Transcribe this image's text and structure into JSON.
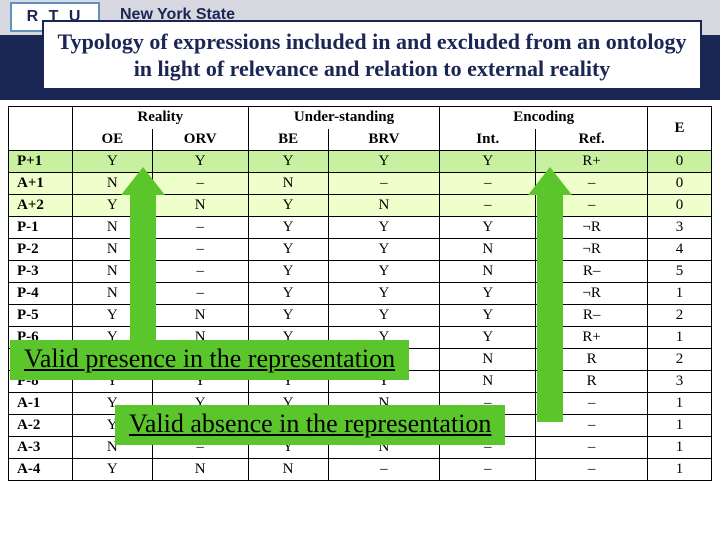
{
  "header": {
    "logo_text": "R T U",
    "nys": "New York State",
    "title": "Typology of expressions included in and excluded from an ontology in light of relevance and relation to external reality"
  },
  "table": {
    "groups": [
      "",
      "Reality",
      "Under-standing",
      "Encoding",
      "E"
    ],
    "subheaders": [
      "",
      "OE",
      "ORV",
      "BE",
      "BRV",
      "Int.",
      "Ref.",
      ""
    ],
    "rows": [
      {
        "label": "P+1",
        "cells": [
          "Y",
          "Y",
          "Y",
          "Y",
          "Y",
          "R+",
          "0"
        ],
        "cls": "sect-P1"
      },
      {
        "label": "A+1",
        "cells": [
          "N",
          "–",
          "N",
          "–",
          "–",
          "–",
          "0"
        ],
        "cls": "sect-A1"
      },
      {
        "label": "A+2",
        "cells": [
          "Y",
          "N",
          "Y",
          "N",
          "–",
          "–",
          "0"
        ],
        "cls": "sect-A1"
      },
      {
        "label": "P-1",
        "cells": [
          "N",
          "–",
          "Y",
          "Y",
          "Y",
          "¬R",
          "3"
        ],
        "cls": ""
      },
      {
        "label": "P-2",
        "cells": [
          "N",
          "–",
          "Y",
          "Y",
          "N",
          "¬R",
          "4"
        ],
        "cls": ""
      },
      {
        "label": "P-3",
        "cells": [
          "N",
          "–",
          "Y",
          "Y",
          "N",
          "R–",
          "5"
        ],
        "cls": ""
      },
      {
        "label": "P-4",
        "cells": [
          "N",
          "–",
          "Y",
          "Y",
          "Y",
          "¬R",
          "1"
        ],
        "cls": ""
      },
      {
        "label": "P-5",
        "cells": [
          "Y",
          "N",
          "Y",
          "Y",
          "Y",
          "R–",
          "2"
        ],
        "cls": ""
      },
      {
        "label": "P-6",
        "cells": [
          "Y",
          "N",
          "Y",
          "Y",
          "Y",
          "R+",
          "1"
        ],
        "cls": ""
      },
      {
        "label": "P-7",
        "cells": [
          "Y",
          "N",
          "Y",
          "Y",
          "N",
          "R",
          "2"
        ],
        "cls": ""
      },
      {
        "label": "P-8",
        "cells": [
          "Y",
          "Y",
          "Y",
          "Y",
          "N",
          "R",
          "3"
        ],
        "cls": ""
      },
      {
        "label": "A-1",
        "cells": [
          "Y",
          "Y",
          "Y",
          "N",
          "–",
          "–",
          "1"
        ],
        "cls": ""
      },
      {
        "label": "A-2",
        "cells": [
          "Y",
          "Y",
          "N",
          "–",
          "–",
          "–",
          "1"
        ],
        "cls": ""
      },
      {
        "label": "A-3",
        "cells": [
          "N",
          "–",
          "Y",
          "N",
          "–",
          "–",
          "1"
        ],
        "cls": ""
      },
      {
        "label": "A-4",
        "cells": [
          "Y",
          "N",
          "N",
          "–",
          "–",
          "–",
          "1"
        ],
        "cls": ""
      }
    ]
  },
  "callouts": {
    "presence": "Valid presence in the representation",
    "absence": "Valid absence in the representation"
  },
  "colors": {
    "brand_dark": "#1a2654",
    "green_arrow": "#5bc52c",
    "row_green_strong": "#c8f0a0",
    "row_green_light": "#eeffcc"
  }
}
